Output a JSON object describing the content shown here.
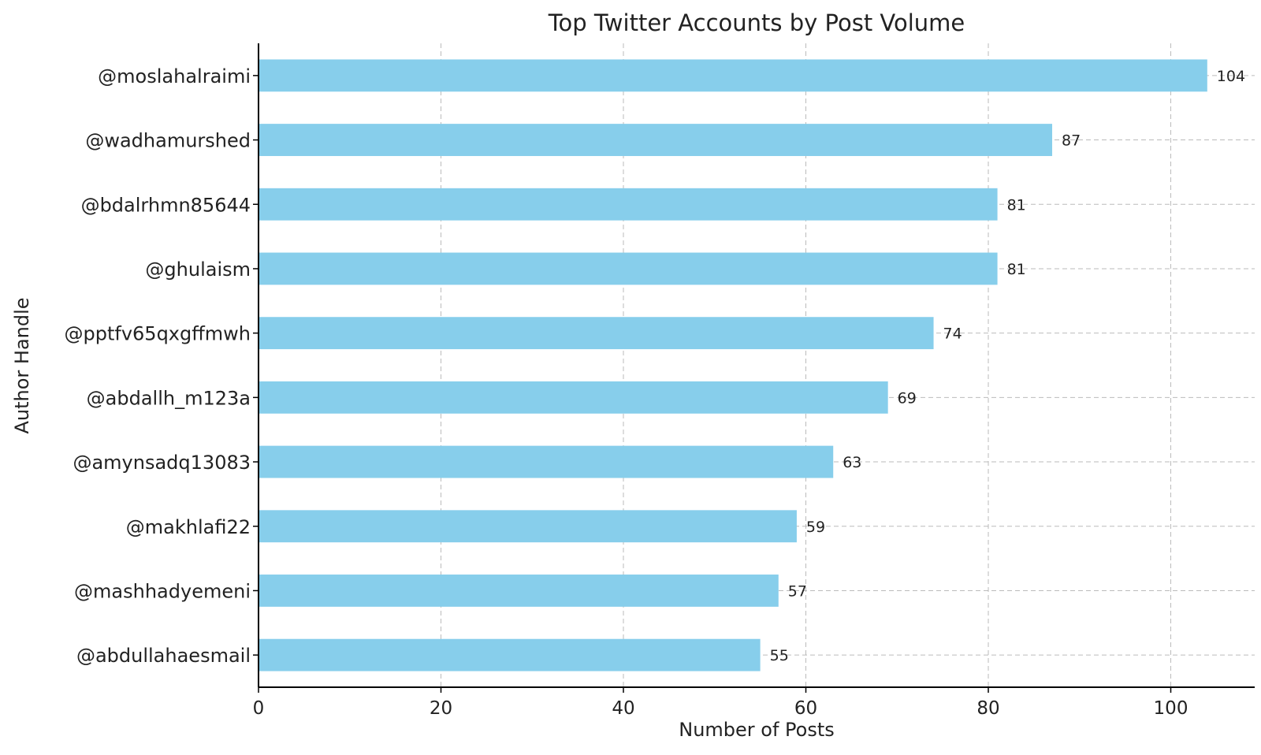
{
  "chart_data": {
    "type": "bar",
    "orientation": "horizontal",
    "title": "Top Twitter Accounts by Post Volume",
    "xlabel": "Number of Posts",
    "ylabel": "Author Handle",
    "categories": [
      "@moslahalraimi",
      "@wadhamurshed",
      "@bdalrhmn85644",
      "@ghulaism",
      "@pptfv65qxgffmwh",
      "@abdallh_m123a",
      "@amynsadq13083",
      "@makhlafi22",
      "@mashhadyemeni",
      "@abdullahaesmail"
    ],
    "values": [
      104,
      87,
      81,
      81,
      74,
      69,
      63,
      59,
      57,
      55
    ],
    "xlim": [
      0,
      109.2
    ],
    "xticks": [
      0,
      20,
      40,
      60,
      80,
      100
    ],
    "grid": true,
    "bar_color": "#87ceeb",
    "show_data_labels": true
  }
}
